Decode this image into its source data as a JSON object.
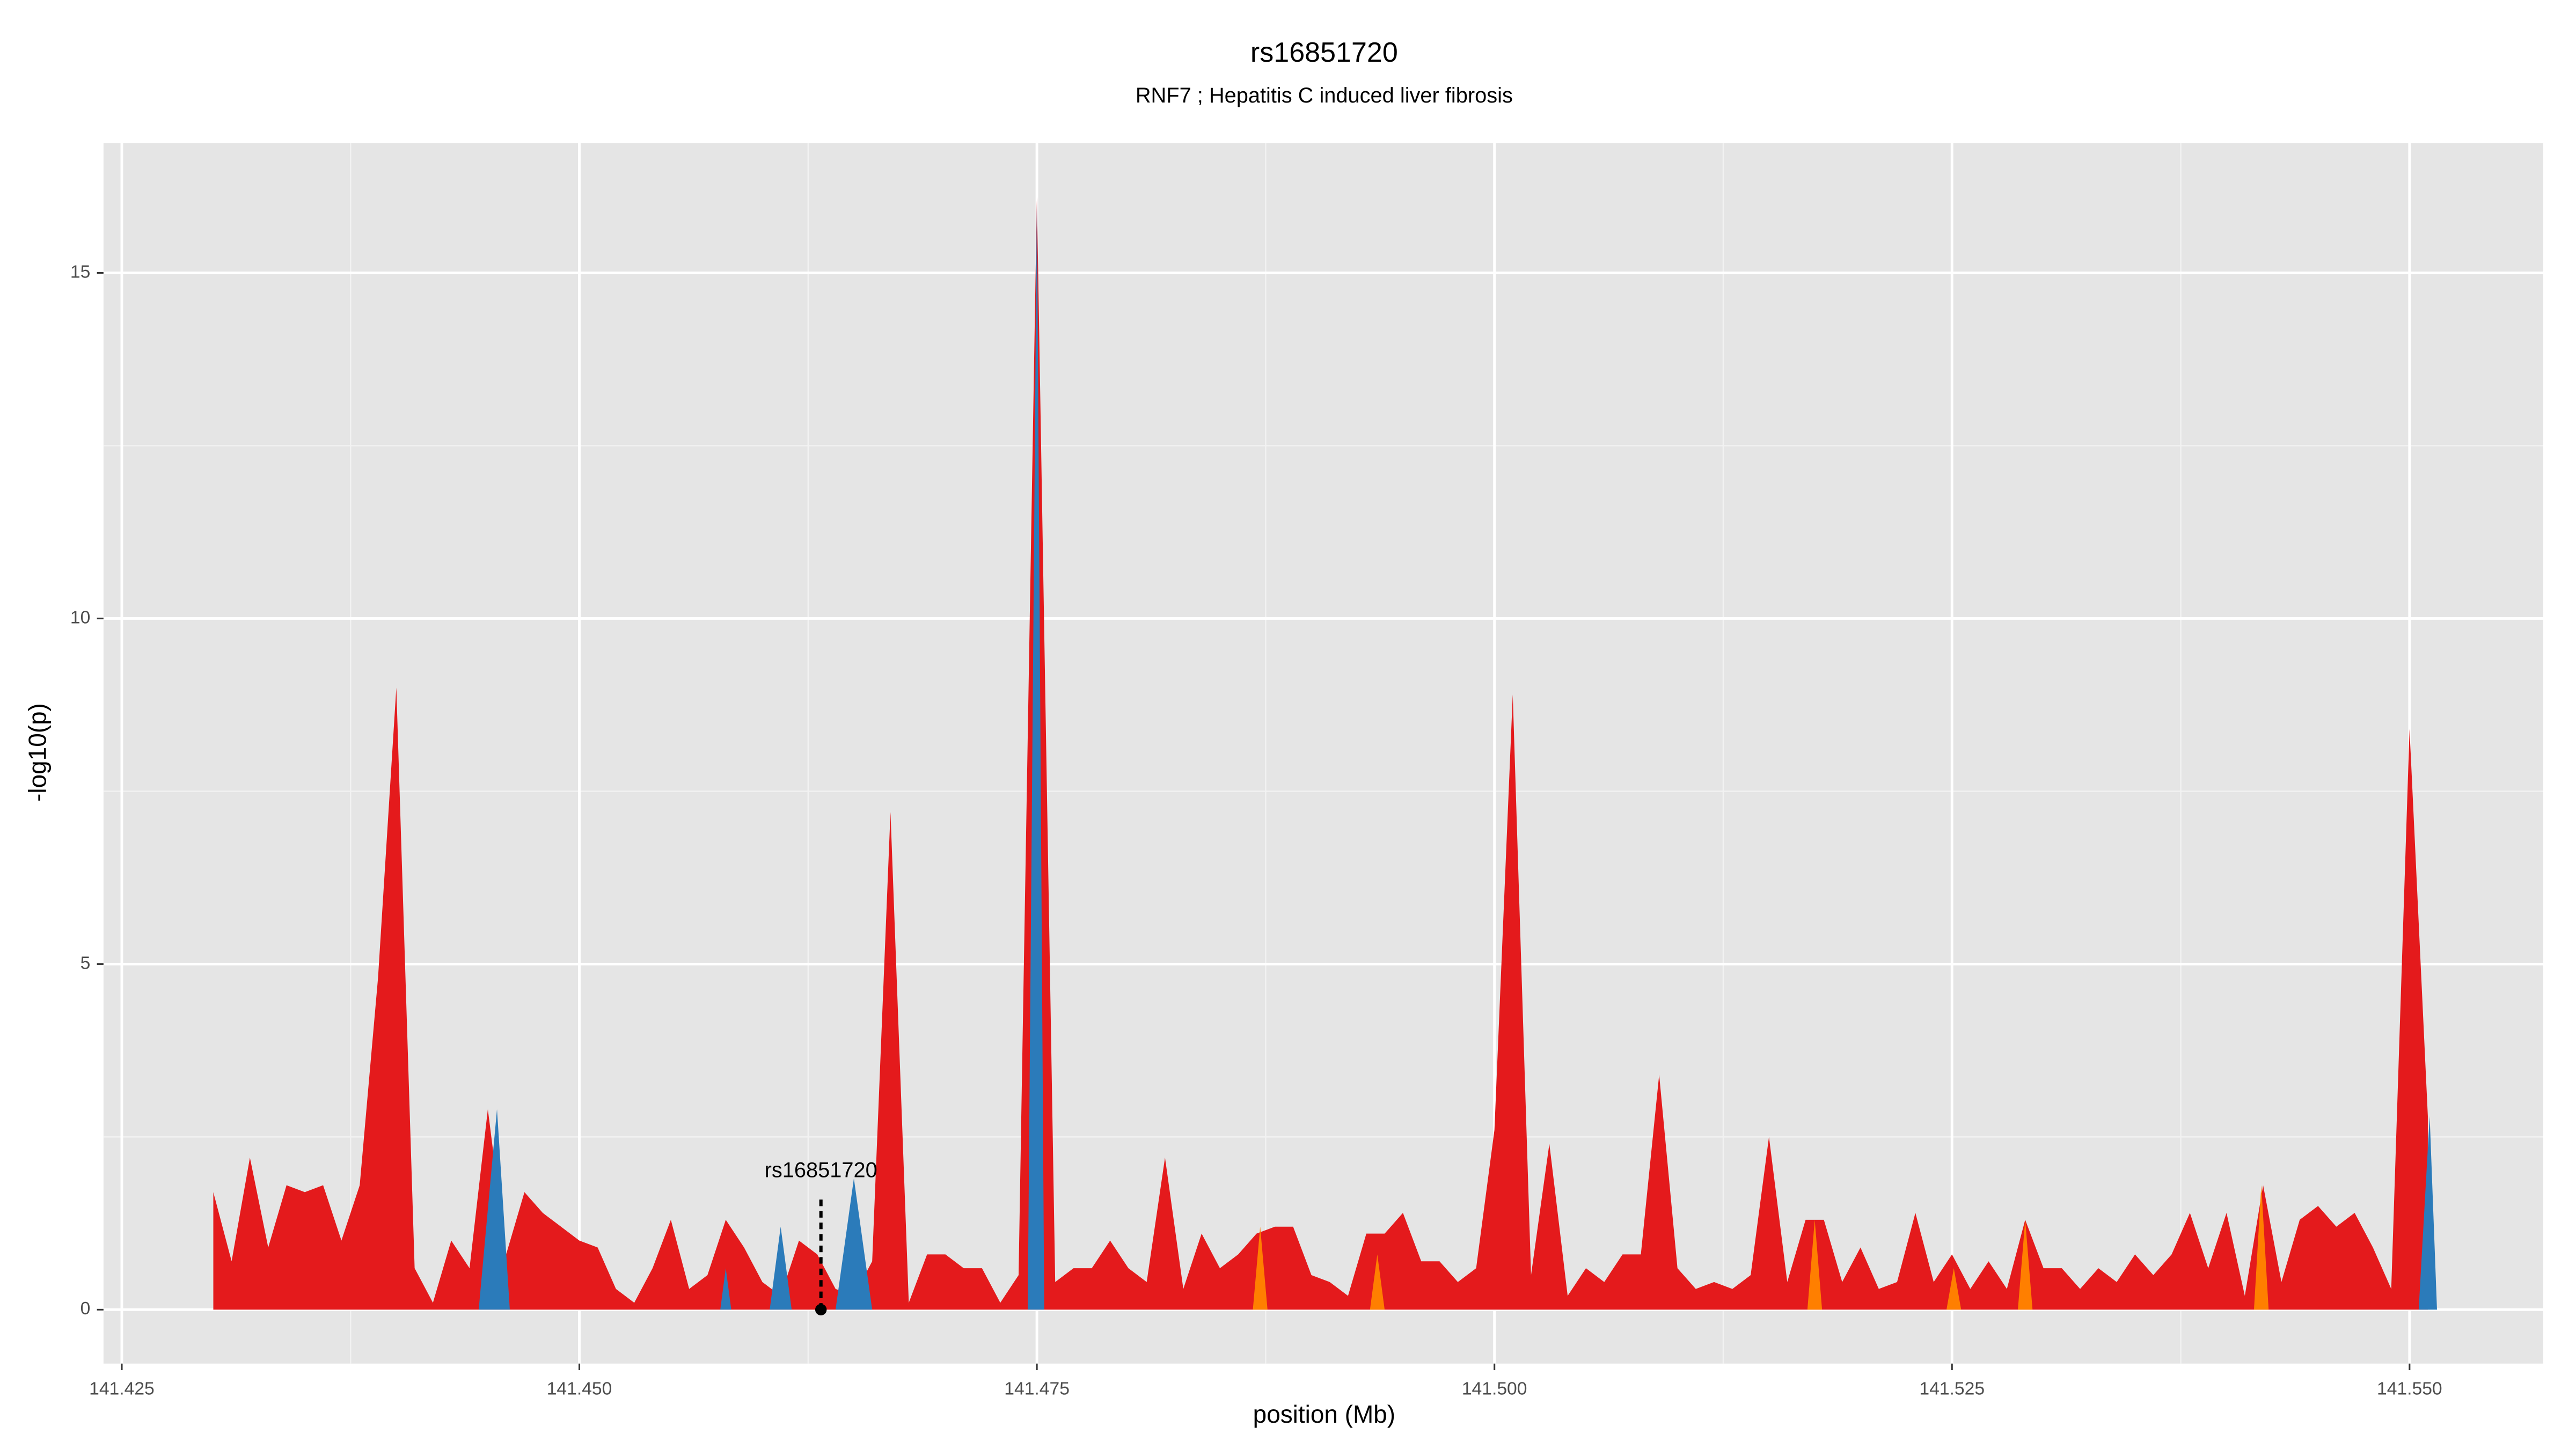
{
  "chart_data": {
    "type": "area",
    "title": "rs16851720",
    "subtitle": "RNF7 ; Hepatitis C induced liver fibrosis",
    "xlabel": "position (Mb)",
    "ylabel": "-log10(p)",
    "xlim": [
      141.424,
      141.5573
    ],
    "ylim": [
      -0.78,
      16.88
    ],
    "xticks": [
      141.425,
      {
        "value": 141.45,
        "label": "141.450"
      },
      141.475,
      {
        "value": 141.5,
        "label": "141.500"
      },
      141.525,
      {
        "value": 141.55,
        "label": "141.550"
      }
    ],
    "yticks": [
      0,
      5,
      10,
      15
    ],
    "grid": true,
    "series": [
      {
        "color": "#e41a1c",
        "x": [
          141.43,
          141.431,
          141.432,
          141.433,
          141.434,
          141.435,
          141.436,
          141.437,
          141.438,
          141.439,
          141.44,
          141.441,
          141.442,
          141.443,
          141.444,
          141.445,
          141.446,
          141.447,
          141.448,
          141.449,
          141.45,
          141.451,
          141.452,
          141.453,
          141.454,
          141.455,
          141.456,
          141.457,
          141.458,
          141.459,
          141.46,
          141.461,
          141.462,
          141.463,
          141.464,
          141.465,
          141.466,
          141.467,
          141.468,
          141.469,
          141.47,
          141.471,
          141.472,
          141.473,
          141.474,
          141.475,
          141.476,
          141.477,
          141.478,
          141.479,
          141.48,
          141.481,
          141.482,
          141.483,
          141.484,
          141.485,
          141.486,
          141.487,
          141.488,
          141.489,
          141.49,
          141.491,
          141.492,
          141.493,
          141.494,
          141.495,
          141.496,
          141.497,
          141.498,
          141.499,
          141.5,
          141.501,
          141.502,
          141.503,
          141.504,
          141.505,
          141.506,
          141.507,
          141.508,
          141.509,
          141.51,
          141.511,
          141.512,
          141.513,
          141.514,
          141.515,
          141.516,
          141.517,
          141.518,
          141.519,
          141.52,
          141.521,
          141.522,
          141.523,
          141.524,
          141.525,
          141.526,
          141.527,
          141.528,
          141.529,
          141.53,
          141.531,
          141.532,
          141.533,
          141.534,
          141.535,
          141.536,
          141.537,
          141.538,
          141.539,
          141.54,
          141.541,
          141.542,
          141.543,
          141.544,
          141.545,
          141.546,
          141.547,
          141.548,
          141.549,
          141.55,
          141.551
        ],
        "values": [
          1.7,
          0.7,
          2.2,
          0.9,
          1.8,
          1.7,
          1.8,
          1.0,
          1.8,
          4.8,
          9.0,
          0.6,
          0.1,
          1.0,
          0.6,
          2.9,
          0.8,
          1.7,
          1.4,
          1.2,
          1.0,
          0.9,
          0.3,
          0.1,
          0.6,
          1.3,
          0.3,
          0.5,
          1.3,
          0.9,
          0.4,
          0.2,
          1.0,
          0.8,
          0.3,
          0.2,
          0.7,
          7.2,
          0.1,
          0.8,
          0.8,
          0.6,
          0.6,
          0.1,
          0.5,
          16.1,
          0.4,
          0.6,
          0.6,
          1.0,
          0.6,
          0.4,
          2.2,
          0.3,
          1.1,
          0.6,
          0.8,
          1.1,
          1.2,
          1.2,
          0.5,
          0.4,
          0.2,
          1.1,
          1.1,
          1.4,
          0.7,
          0.7,
          0.4,
          0.6,
          2.6,
          8.9,
          0.5,
          2.4,
          0.2,
          0.6,
          0.4,
          0.8,
          0.8,
          3.4,
          0.6,
          0.3,
          0.4,
          0.3,
          0.5,
          2.5,
          0.4,
          1.3,
          1.3,
          0.4,
          0.9,
          0.3,
          0.4,
          1.4,
          0.4,
          0.8,
          0.3,
          0.7,
          0.3,
          1.3,
          0.6,
          0.6,
          0.3,
          0.6,
          0.4,
          0.8,
          0.5,
          0.8,
          1.4,
          0.6,
          1.4,
          0.2,
          1.8,
          0.4,
          1.3,
          1.5,
          1.2,
          1.4,
          0.9,
          0.3,
          8.4,
          2.8
        ]
      },
      {
        "color": "#2b7bba",
        "x": [
          141.4445,
          141.4455,
          141.4462
        ],
        "values": [
          0,
          2.9,
          0
        ]
      },
      {
        "color": "#2b7bba",
        "x": [
          141.4577,
          141.458,
          141.4583
        ],
        "values": [
          0,
          0.6,
          0
        ]
      },
      {
        "color": "#2b7bba",
        "x": [
          141.4604,
          141.461,
          141.4616
        ],
        "values": [
          0,
          1.2,
          0
        ]
      },
      {
        "color": "#2b7bba",
        "x": [
          141.464,
          141.465,
          141.466
        ],
        "values": [
          0,
          1.9,
          0
        ]
      },
      {
        "color": "#2b7bba",
        "x": [
          141.4745,
          141.475,
          141.4754
        ],
        "values": [
          0,
          16.1,
          0
        ]
      },
      {
        "color": "#2b7bba",
        "x": [
          141.5505,
          141.5511,
          141.5515
        ],
        "values": [
          0,
          2.8,
          0
        ]
      },
      {
        "color": "#ff7f00",
        "x": [
          141.4868,
          141.4872,
          141.4876
        ],
        "values": [
          0,
          1.2,
          0
        ]
      },
      {
        "color": "#ff7f00",
        "x": [
          141.4932,
          141.4936,
          141.494
        ],
        "values": [
          0,
          0.8,
          0
        ]
      },
      {
        "color": "#ff7f00",
        "x": [
          141.5171,
          141.5175,
          141.5179
        ],
        "values": [
          0,
          1.3,
          0
        ]
      },
      {
        "color": "#ff7f00",
        "x": [
          141.5247,
          141.5251,
          141.5255
        ],
        "values": [
          0,
          0.6,
          0
        ]
      },
      {
        "color": "#ff7f00",
        "x": [
          141.5286,
          141.529,
          141.5294
        ],
        "values": [
          0,
          1.3,
          0
        ]
      },
      {
        "color": "#ff7f00",
        "x": [
          141.5415,
          141.5419,
          141.5423
        ],
        "values": [
          0,
          1.8,
          0
        ]
      }
    ],
    "annotation": {
      "text": "rs16851720",
      "x": 141.4632,
      "y": 0
    }
  }
}
